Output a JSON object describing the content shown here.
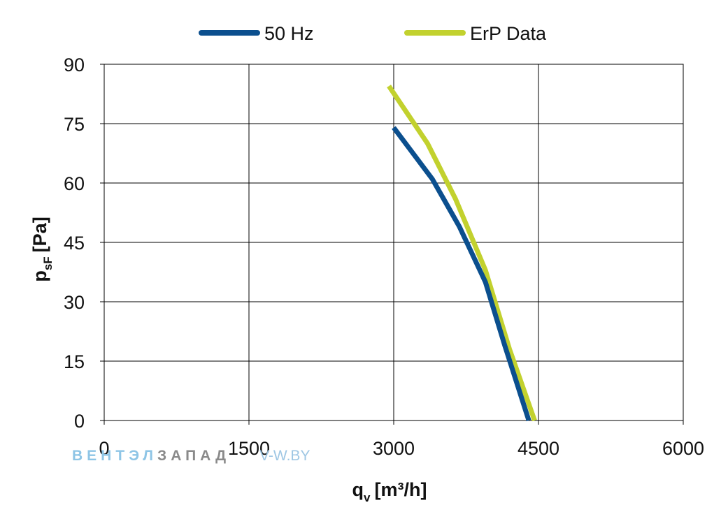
{
  "chart_data": {
    "type": "line",
    "xlabel_main": "q",
    "xlabel_sub": "v",
    "xlabel_unit": "[m³/h]",
    "ylabel_main": "p",
    "ylabel_sub": "sF",
    "ylabel_unit": "[Pa]",
    "xlim": [
      0,
      6000
    ],
    "ylim": [
      0,
      90
    ],
    "x_ticks": [
      "0",
      "1500",
      "3000",
      "4500",
      "6000"
    ],
    "y_ticks": [
      "0",
      "15",
      "30",
      "45",
      "60",
      "75",
      "90"
    ],
    "x_tick_values": [
      0,
      1500,
      3000,
      4500,
      6000
    ],
    "y_tick_values": [
      0,
      15,
      30,
      45,
      60,
      75,
      90
    ],
    "grid": true,
    "legend_position": "top",
    "series": [
      {
        "name": "50 Hz",
        "color": "#0b4f8e",
        "points": [
          [
            3000,
            74
          ],
          [
            3400,
            61
          ],
          [
            3680,
            49
          ],
          [
            3950,
            35
          ],
          [
            4150,
            19
          ],
          [
            4400,
            0
          ]
        ]
      },
      {
        "name": "ErP Data",
        "color": "#c2d12e",
        "points": [
          [
            2950,
            84.5
          ],
          [
            3350,
            70
          ],
          [
            3640,
            56
          ],
          [
            3950,
            38
          ],
          [
            4200,
            18
          ],
          [
            4460,
            0
          ]
        ]
      }
    ]
  },
  "watermark": {
    "part1": "ВЕНТЭЛ",
    "part2": "ЗАПАД",
    "part3": "V-W.BY"
  }
}
